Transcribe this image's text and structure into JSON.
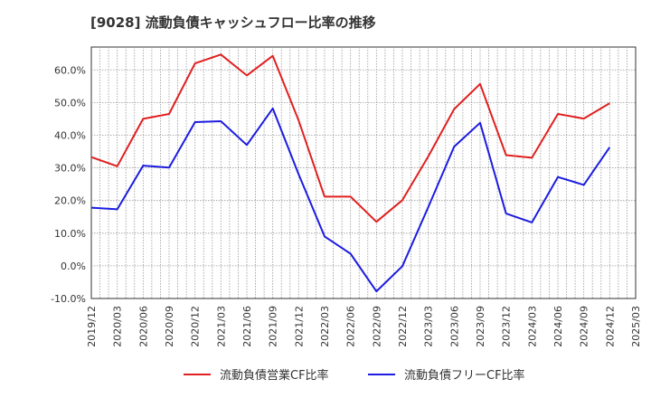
{
  "chart_data": {
    "type": "line",
    "title": "[9028]  流動負債キャッシュフロー比率の推移",
    "xlabel": "",
    "ylabel": "",
    "x": [
      "2019/12",
      "2020/03",
      "2020/06",
      "2020/09",
      "2020/12",
      "2021/03",
      "2021/06",
      "2021/09",
      "2021/12",
      "2022/03",
      "2022/06",
      "2022/09",
      "2022/12",
      "2023/03",
      "2023/06",
      "2023/09",
      "2023/12",
      "2024/03",
      "2024/06",
      "2024/09",
      "2024/12",
      "2025/03"
    ],
    "ylim": [
      -10,
      67
    ],
    "yticks": [
      -10,
      0,
      10,
      20,
      30,
      40,
      50,
      60
    ],
    "ytick_labels": [
      "-10.0%",
      "0.0%",
      "10.0%",
      "20.0%",
      "30.0%",
      "40.0%",
      "50.0%",
      "60.0%"
    ],
    "grid": true,
    "legend_position": "bottom",
    "series": [
      {
        "name": "流動負債営業CF比率",
        "color": "#e02020",
        "values": [
          33.3,
          30.5,
          45.0,
          46.5,
          62.0,
          64.7,
          58.3,
          64.3,
          44.5,
          21.2,
          21.2,
          13.5,
          20.1,
          33.5,
          48.0,
          55.7,
          33.9,
          33.1,
          46.5,
          45.1,
          49.8,
          null
        ]
      },
      {
        "name": "流動負債フリーCF比率",
        "color": "#1c1ce0",
        "values": [
          17.8,
          17.3,
          30.7,
          30.1,
          44.0,
          44.3,
          37.0,
          48.2,
          28.0,
          9.0,
          3.7,
          -7.8,
          -0.1,
          18.0,
          36.5,
          43.8,
          16.0,
          13.3,
          27.2,
          24.8,
          36.3,
          null
        ]
      }
    ]
  }
}
